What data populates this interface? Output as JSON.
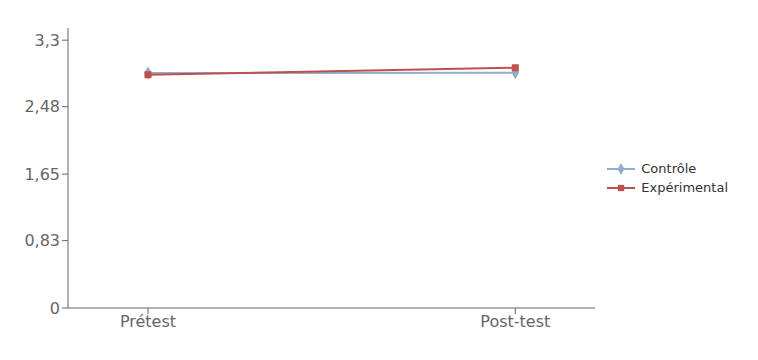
{
  "chart_data": {
    "type": "line",
    "categories": [
      "Prétest",
      "Post-test"
    ],
    "series": [
      {
        "name": "Contrôle",
        "color": "#8eaecb",
        "marker": "diamond",
        "values": [
          2.895,
          2.9
        ]
      },
      {
        "name": "Expérimental",
        "color": "#c0504d",
        "marker": "square",
        "values": [
          2.875,
          2.96
        ]
      }
    ],
    "ylim": [
      0,
      3.45
    ],
    "yticks": [
      0,
      {
        "value": 0.83,
        "label": "0,83"
      },
      {
        "value": 1.65,
        "label": "1,65"
      },
      {
        "value": 2.48,
        "label": "2,48"
      },
      {
        "value": 3.3,
        "label": "3,3"
      }
    ],
    "grid": false,
    "legend": "right"
  }
}
